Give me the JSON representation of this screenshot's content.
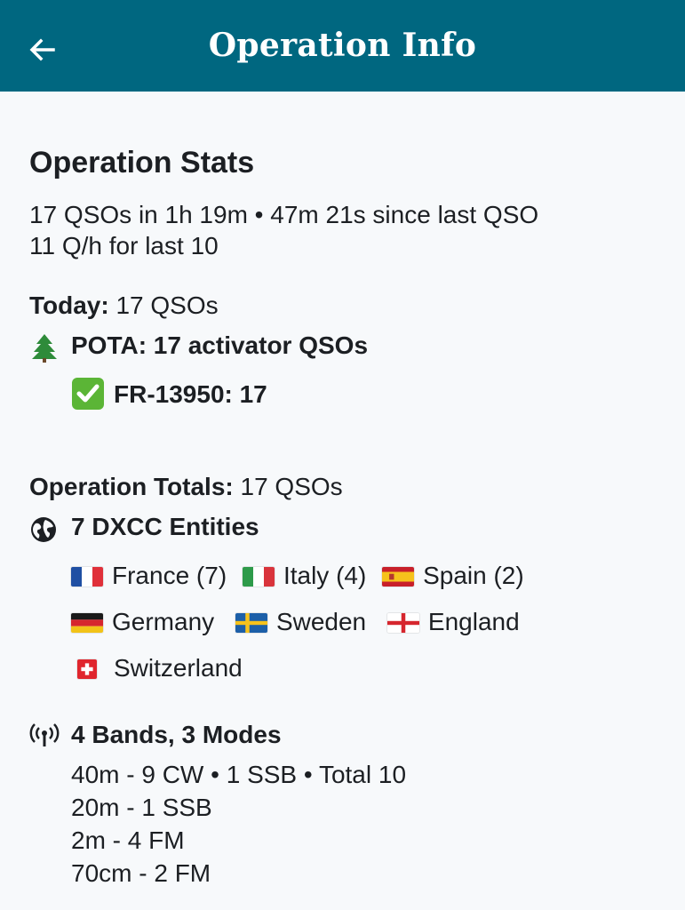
{
  "app_bar": {
    "title": "Operation Info",
    "back_icon": "arrow-left-icon",
    "color": "#006780"
  },
  "stats": {
    "heading": "Operation Stats",
    "summary": "17 QSOs in 1h 19m • 47m 21s since last QSO",
    "rate": "11 Q/h for last 10",
    "today_label": "Today:",
    "today_value": " 17 QSOs",
    "pota_icon": "tree-icon",
    "pota": "POTA: 17 activator QSOs",
    "park_icon": "check-mark-icon",
    "park": "FR-13950: 17"
  },
  "totals": {
    "label": "Operation Totals:",
    "value": " 17 QSOs",
    "dxcc_icon": "globe-icon",
    "dxcc_heading": "7 DXCC Entities",
    "entities": [
      {
        "flag": "france-flag-icon",
        "name": "France (7)"
      },
      {
        "flag": "italy-flag-icon",
        "name": "Italy (4)"
      },
      {
        "flag": "spain-flag-icon",
        "name": "Spain (2)"
      },
      {
        "flag": "germany-flag-icon",
        "name": "Germany"
      },
      {
        "flag": "sweden-flag-icon",
        "name": "Sweden"
      },
      {
        "flag": "england-flag-icon",
        "name": "England"
      },
      {
        "flag": "switzerland-flag-icon",
        "name": "Switzerland"
      }
    ],
    "bands_icon": "antenna-icon",
    "bands_heading": "4 Bands, 3 Modes",
    "bands": [
      "40m -  9 CW • 1 SSB • Total 10",
      "20m -  1 SSB",
      "2m -  4 FM",
      "70cm -  2 FM"
    ]
  }
}
